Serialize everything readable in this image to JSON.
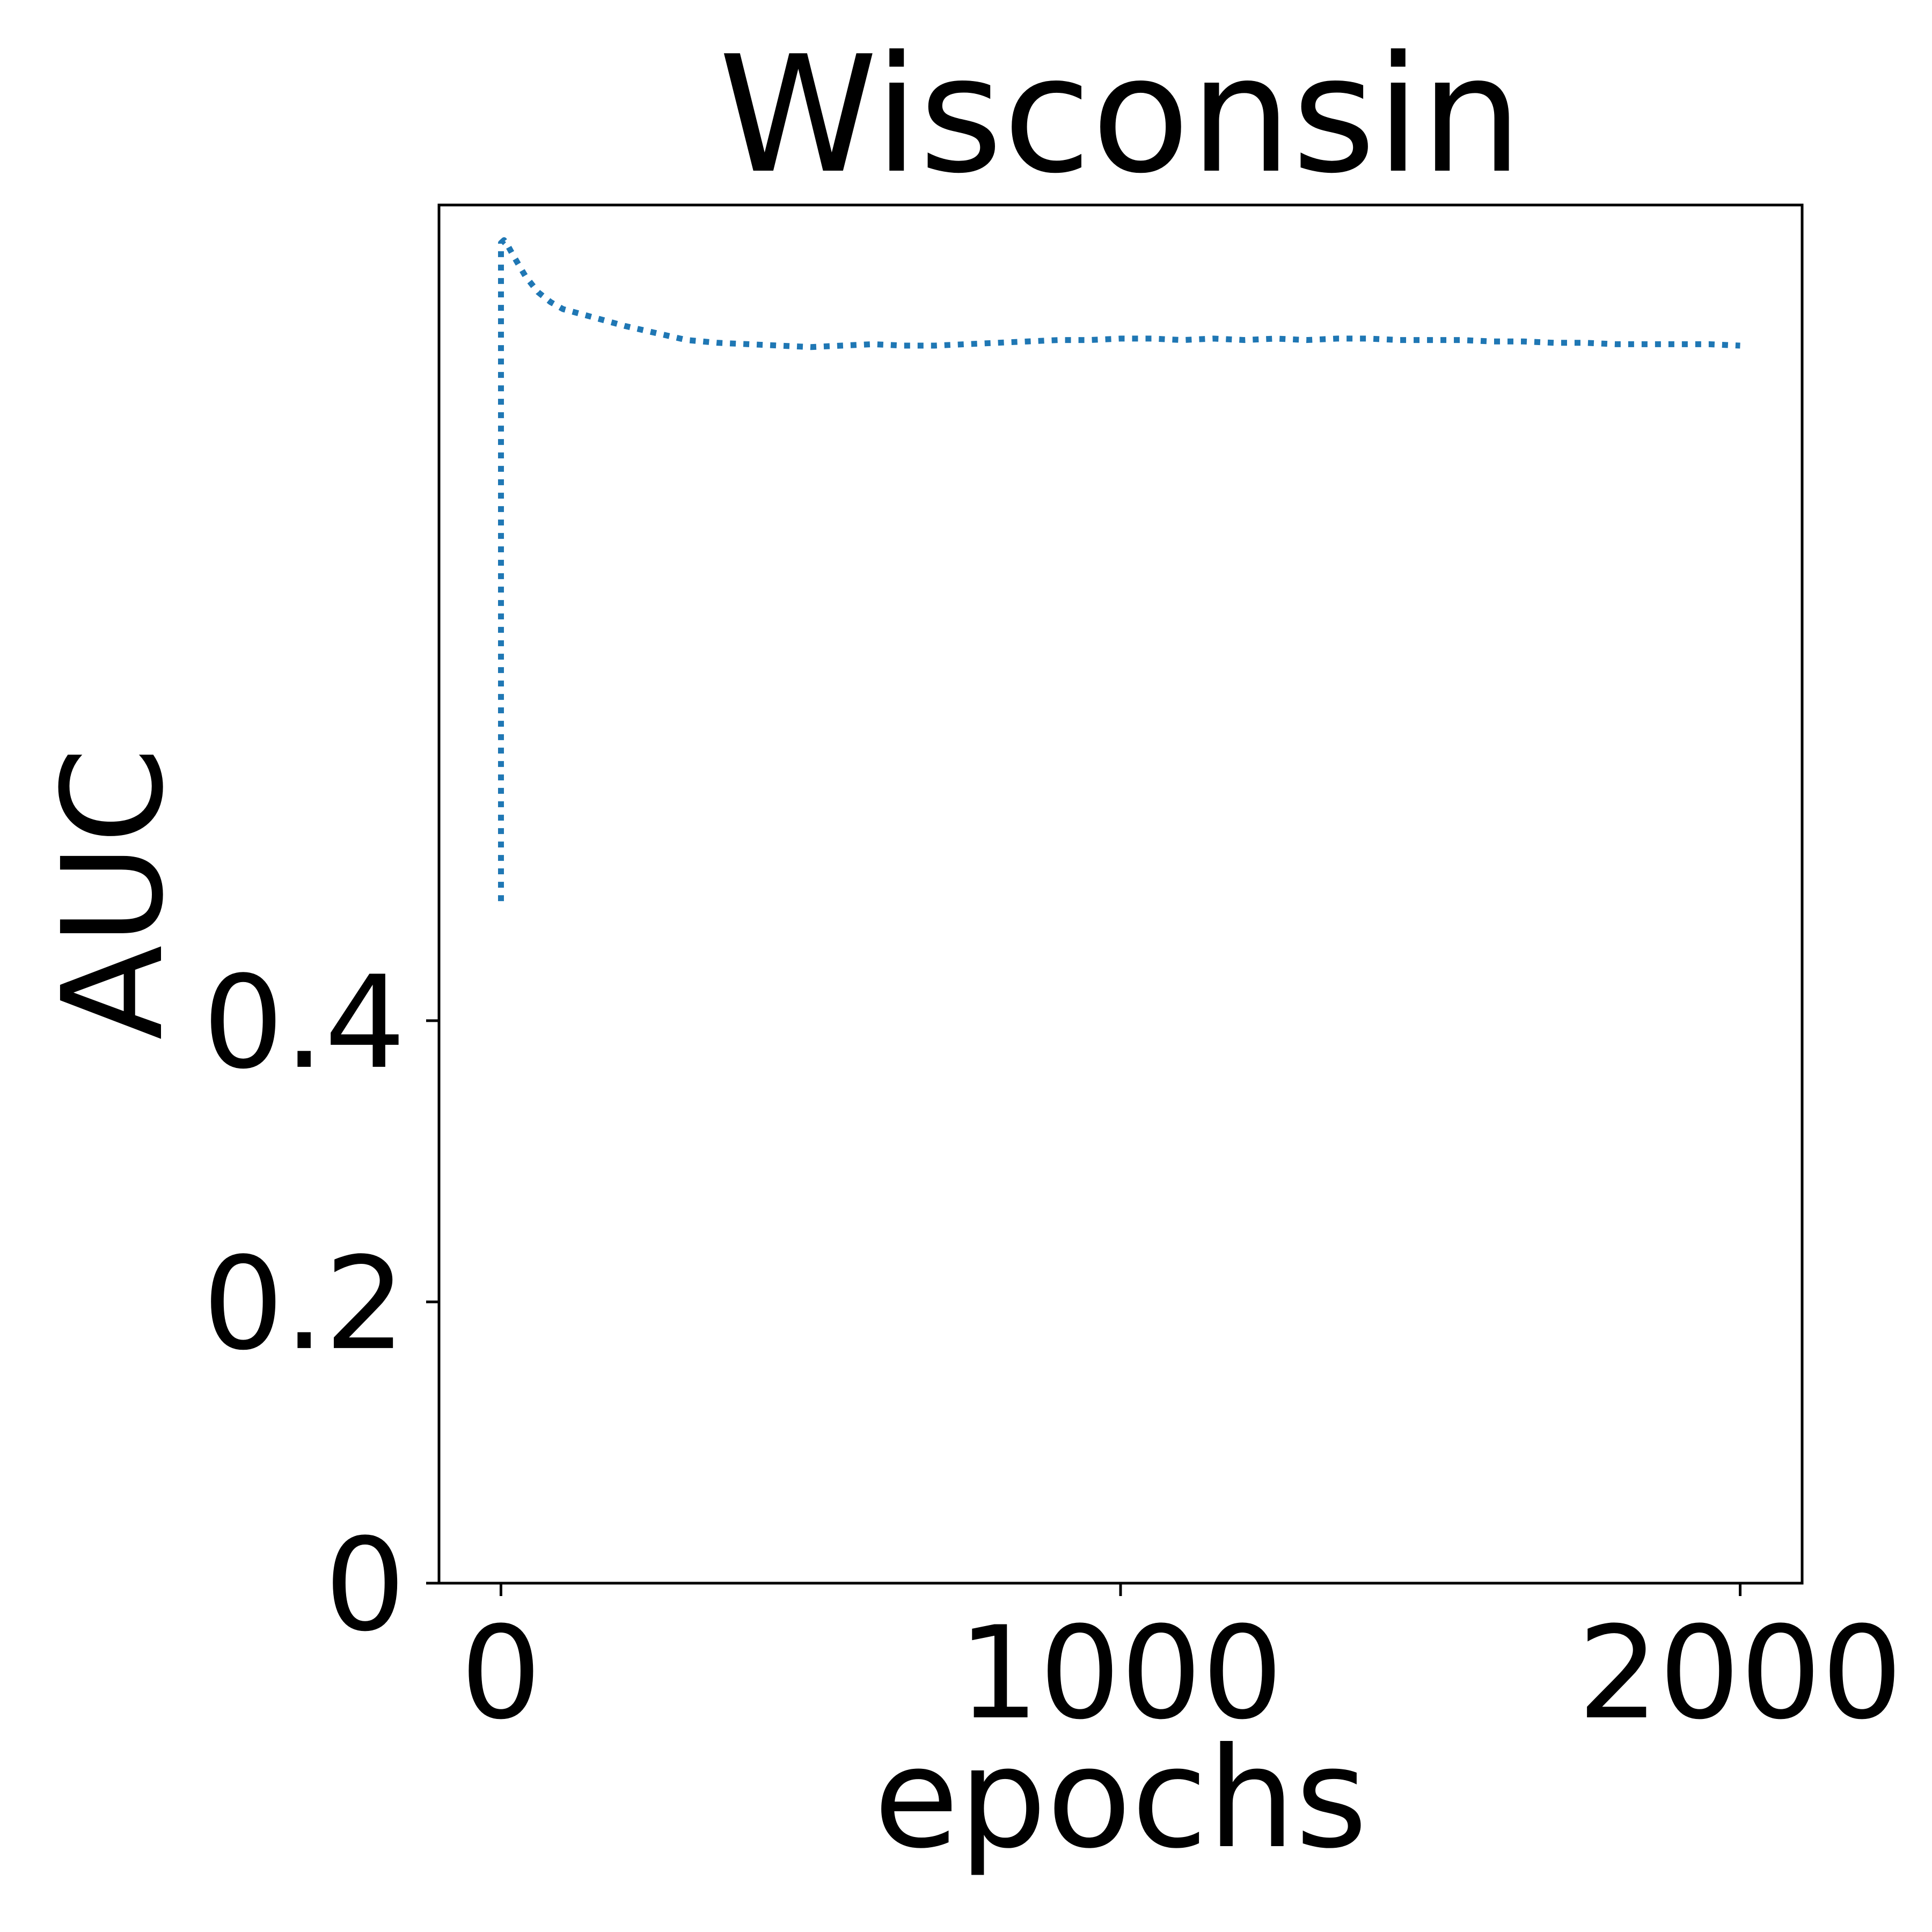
{
  "chart_data": {
    "type": "line",
    "title": "Wisconsin",
    "xlabel": "epochs",
    "ylabel": "AUC",
    "xlim": [
      -100,
      2100
    ],
    "ylim": [
      0,
      0.98
    ],
    "xticks": [
      {
        "value": 0,
        "label": "0"
      },
      {
        "value": 1000,
        "label": "1000"
      },
      {
        "value": 2000,
        "label": "2000"
      }
    ],
    "yticks": [
      {
        "value": 0,
        "label": "0"
      },
      {
        "value": 0.2,
        "label": "0.2"
      },
      {
        "value": 0.4,
        "label": "0.4"
      }
    ],
    "grid": false,
    "series": [
      {
        "color": "#1f77b4",
        "linestyle": "dotted",
        "x": [
          0,
          0,
          5,
          10,
          20,
          40,
          60,
          80,
          100,
          150,
          200,
          250,
          300,
          350,
          400,
          450,
          500,
          550,
          600,
          650,
          700,
          750,
          800,
          850,
          900,
          950,
          1000,
          1050,
          1100,
          1150,
          1200,
          1250,
          1300,
          1350,
          1400,
          1450,
          1500,
          1550,
          1600,
          1650,
          1700,
          1750,
          1800,
          1850,
          1900,
          1950,
          2000
        ],
        "y": [
          0.485,
          0.953,
          0.955,
          0.952,
          0.944,
          0.929,
          0.918,
          0.911,
          0.906,
          0.9,
          0.894,
          0.889,
          0.884,
          0.882,
          0.881,
          0.88,
          0.879,
          0.88,
          0.881,
          0.88,
          0.88,
          0.881,
          0.882,
          0.883,
          0.884,
          0.884,
          0.885,
          0.885,
          0.884,
          0.885,
          0.884,
          0.885,
          0.884,
          0.885,
          0.885,
          0.884,
          0.884,
          0.884,
          0.883,
          0.883,
          0.882,
          0.882,
          0.881,
          0.881,
          0.881,
          0.881,
          0.88
        ]
      }
    ]
  }
}
